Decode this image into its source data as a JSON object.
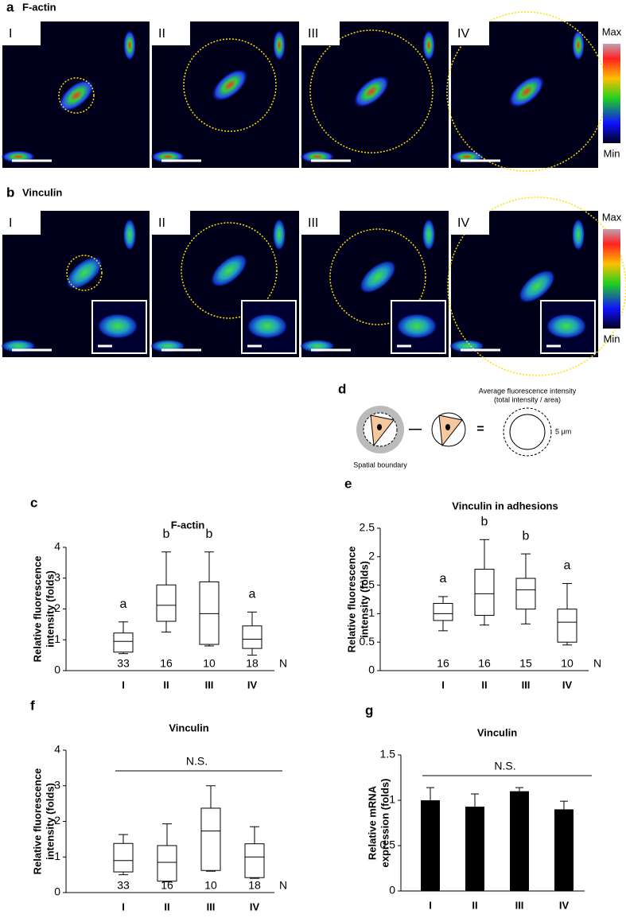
{
  "panels": {
    "a": {
      "letter": "a",
      "title": "F-actin",
      "labels": [
        "I",
        "II",
        "III",
        "IV"
      ],
      "colorbar": [
        "Max",
        "Min"
      ]
    },
    "b": {
      "letter": "b",
      "title": "Vinculin",
      "labels": [
        "I",
        "II",
        "III",
        "IV"
      ],
      "colorbar": [
        "Max",
        "Min"
      ]
    },
    "d": {
      "letter": "d",
      "boundary_label": "Spatial boundary",
      "minus": "—",
      "equals": "=",
      "avg_title": "Average fluorescence intensity",
      "avg_sub": "(total intensity / area)",
      "distance": "5 μm"
    }
  },
  "chart_data": [
    {
      "type": "box",
      "letter": "c",
      "title": "F-actin",
      "ylabel": [
        "Relative fluorescence",
        "intensity (folds)"
      ],
      "categories": [
        "I",
        "II",
        "III",
        "IV"
      ],
      "boxes": [
        {
          "whisker_low": 0.55,
          "q1": 0.6,
          "median": 0.95,
          "q3": 1.22,
          "whisker_high": 1.58
        },
        {
          "whisker_low": 1.25,
          "q1": 1.6,
          "median": 2.12,
          "q3": 2.78,
          "whisker_high": 3.85
        },
        {
          "whisker_low": 0.8,
          "q1": 0.85,
          "median": 1.85,
          "q3": 2.88,
          "whisker_high": 3.85
        },
        {
          "whisker_low": 0.5,
          "q1": 0.72,
          "median": 1.02,
          "q3": 1.45,
          "whisker_high": 1.9
        }
      ],
      "group_labels": [
        "a",
        "b",
        "b",
        "a"
      ],
      "n": [
        33,
        16,
        10,
        18
      ],
      "n_label": "N",
      "ylim": [
        0,
        4
      ],
      "yticks": [
        0,
        1,
        2,
        3,
        4
      ],
      "color": "#000000"
    },
    {
      "type": "box",
      "letter": "e",
      "title": "Vinculin in adhesions",
      "ylabel": [
        "Relative fluorescence",
        "intensity (folds)"
      ],
      "categories": [
        "I",
        "II",
        "III",
        "IV"
      ],
      "boxes": [
        {
          "whisker_low": 0.7,
          "q1": 0.88,
          "median": 1.0,
          "q3": 1.18,
          "whisker_high": 1.3
        },
        {
          "whisker_low": 0.8,
          "q1": 0.97,
          "median": 1.35,
          "q3": 1.78,
          "whisker_high": 2.3
        },
        {
          "whisker_low": 0.82,
          "q1": 1.08,
          "median": 1.42,
          "q3": 1.62,
          "whisker_high": 2.05
        },
        {
          "whisker_low": 0.45,
          "q1": 0.5,
          "median": 0.85,
          "q3": 1.08,
          "whisker_high": 1.53
        }
      ],
      "group_labels": [
        "a",
        "b",
        "b",
        "a"
      ],
      "n": [
        16,
        16,
        15,
        10
      ],
      "n_label": "N",
      "ylim": [
        0,
        2.5
      ],
      "yticks": [
        0,
        0.5,
        1,
        1.5,
        2,
        2.5
      ],
      "color": "#000000"
    },
    {
      "type": "box",
      "letter": "f",
      "title": "Vinculin",
      "ylabel": [
        "Relative fluorescence",
        "intensity (folds)"
      ],
      "categories": [
        "I",
        "II",
        "III",
        "IV"
      ],
      "boxes": [
        {
          "whisker_low": 0.5,
          "q1": 0.58,
          "median": 0.9,
          "q3": 1.38,
          "whisker_high": 1.63
        },
        {
          "whisker_low": 0.3,
          "q1": 0.32,
          "median": 0.85,
          "q3": 1.32,
          "whisker_high": 1.93
        },
        {
          "whisker_low": 0.6,
          "q1": 0.62,
          "median": 1.73,
          "q3": 2.37,
          "whisker_high": 3.0
        },
        {
          "whisker_low": 0.4,
          "q1": 0.42,
          "median": 1.0,
          "q3": 1.37,
          "whisker_high": 1.85
        }
      ],
      "annotation": "N.S.",
      "n": [
        33,
        16,
        10,
        18
      ],
      "n_label": "N",
      "ylim": [
        0,
        4
      ],
      "yticks": [
        0,
        1,
        2,
        3,
        4
      ],
      "color": "#000000"
    },
    {
      "type": "bar",
      "letter": "g",
      "title": "Vinculin",
      "ylabel": [
        "Relative mRNA",
        "expression (folds)"
      ],
      "categories": [
        "I",
        "II",
        "III",
        "IV"
      ],
      "values": [
        1.0,
        0.93,
        1.1,
        0.9
      ],
      "errors": [
        0.14,
        0.14,
        0.04,
        0.09
      ],
      "annotation": "N.S.",
      "ylim": [
        0,
        1.5
      ],
      "yticks": [
        0,
        0.5,
        1,
        1.5
      ],
      "color": "#000000"
    }
  ]
}
